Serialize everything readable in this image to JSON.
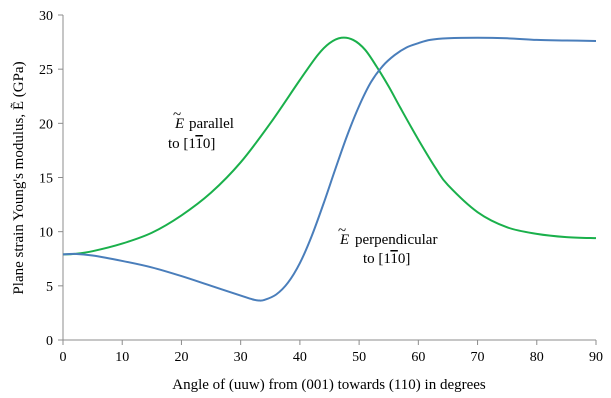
{
  "chart_data": {
    "type": "line",
    "title": "",
    "xlabel": "Angle of (uuw) from (001) towards (110) in degrees",
    "ylabel": "Plane strain Young's modulus, Ẽ (GPa)",
    "xlim": [
      0,
      90
    ],
    "ylim": [
      0,
      30
    ],
    "xticks": [
      0,
      10,
      20,
      30,
      40,
      50,
      60,
      70,
      80,
      90
    ],
    "yticks": [
      0,
      5,
      10,
      15,
      20,
      25,
      30
    ],
    "grid": false,
    "legend": "none",
    "series": [
      {
        "color": "#1ab04b",
        "x": [
          0,
          2,
          5,
          10,
          15,
          20,
          25,
          30,
          35,
          40,
          43,
          45,
          47,
          49,
          51,
          53,
          55,
          57,
          60,
          63,
          65,
          70,
          75,
          80,
          85,
          90
        ],
        "y": [
          7.9,
          7.95,
          8.2,
          8.9,
          9.9,
          11.5,
          13.6,
          16.4,
          20.0,
          24.0,
          26.3,
          27.4,
          27.9,
          27.7,
          26.8,
          25.2,
          23.4,
          21.4,
          18.5,
          15.8,
          14.3,
          11.8,
          10.4,
          9.8,
          9.5,
          9.4
        ]
      },
      {
        "color": "#4a7ebb",
        "x": [
          0,
          2,
          5,
          10,
          15,
          20,
          25,
          30,
          32,
          33,
          34,
          36,
          38,
          40,
          42,
          44,
          46,
          48,
          50,
          52,
          54,
          56,
          58,
          60,
          62,
          65,
          70,
          75,
          80,
          85,
          90
        ],
        "y": [
          7.9,
          7.95,
          7.8,
          7.3,
          6.7,
          5.9,
          5.0,
          4.1,
          3.75,
          3.65,
          3.7,
          4.2,
          5.3,
          7.1,
          9.6,
          12.6,
          15.8,
          18.9,
          21.6,
          23.8,
          25.3,
          26.3,
          27.0,
          27.4,
          27.7,
          27.85,
          27.9,
          27.85,
          27.7,
          27.65,
          27.6
        ]
      }
    ],
    "annotations": [
      {
        "label": "parallel",
        "line2": "to [1",
        "bar": "1",
        "end": "0]"
      },
      {
        "label": "perpendicular",
        "line2": "to [1",
        "bar": "1",
        "end": "0]"
      }
    ]
  }
}
